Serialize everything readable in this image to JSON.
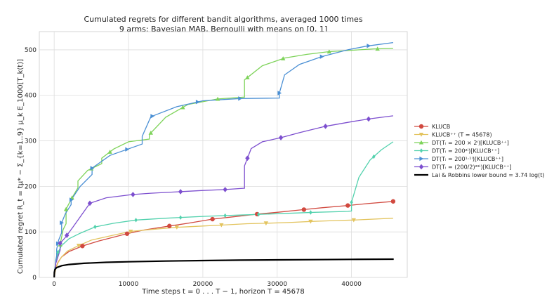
{
  "chart_data": {
    "type": "line",
    "title": "Cumulated regrets for different bandit algorithms, averaged 1000 times",
    "subtitle": "9 arms: Bayesian MAB, Bernoulli with means on [0, 1]",
    "xlabel": "Time steps t = 0 . . . T − 1, horizon T = 45678",
    "ylabel": "Cumulated regret R_t = tμ* − Σ_{k=1..9} μ_k E_1000[T_k(t)]",
    "xlim": [
      -2000,
      47500
    ],
    "ylim": [
      0,
      540
    ],
    "x_ticks": [
      0,
      10000,
      20000,
      30000,
      40000
    ],
    "x_tick_labels": [
      "0",
      "10000",
      "20000",
      "30000",
      "40000"
    ],
    "y_ticks": [
      0,
      100,
      200,
      300,
      400,
      500
    ],
    "y_tick_labels": [
      "0",
      "100",
      "200",
      "300",
      "400",
      "500"
    ],
    "grid": true,
    "legend_position": "right",
    "series": [
      {
        "name": "KLUCB",
        "color": "#d1493f",
        "marker": "circle",
        "x": [
          0,
          200,
          500,
          1000,
          2000,
          3800,
          6000,
          9800,
          12000,
          15500,
          18000,
          21300,
          24000,
          27300,
          30000,
          33600,
          36000,
          39500,
          42000,
          45600
        ],
        "y": [
          0,
          20,
          33,
          45,
          57,
          69,
          80,
          96,
          104,
          113,
          119,
          128,
          133,
          139,
          143,
          149,
          153,
          158,
          162,
          167
        ]
      },
      {
        "name": "KLUCB⁺⁺ (T = 45678)",
        "color": "#e3c45f",
        "marker": "triangle-down",
        "x": [
          0,
          200,
          500,
          1000,
          1800,
          3300,
          5000,
          8000,
          10300,
          13500,
          16500,
          20000,
          22500,
          26000,
          28500,
          32000,
          34500,
          38000,
          40300,
          45600
        ],
        "y": [
          0,
          18,
          32,
          45,
          58,
          70,
          82,
          93,
          101,
          106,
          110,
          113,
          115,
          118,
          119,
          121,
          123,
          125,
          126,
          130
        ]
      },
      {
        "name": "DT(T_i = 200 × 2^i)[KLUCB⁺⁺]",
        "color": "#7ed35a",
        "marker": "triangle-up",
        "x": [
          0,
          200,
          400,
          799,
          800,
          1200,
          1599,
          1600,
          2400,
          3199,
          3200,
          4500,
          6399,
          6400,
          8000,
          10000,
          12799,
          12800,
          15000,
          18000,
          22000,
          25599,
          25600,
          28000,
          31000,
          34000,
          37000,
          40000,
          43000,
          45600
        ],
        "y": [
          0,
          30,
          45,
          60,
          72,
          105,
          118,
          150,
          175,
          197,
          212,
          235,
          250,
          262,
          282,
          298,
          304,
          314,
          352,
          380,
          392,
          396,
          434,
          465,
          482,
          490,
          496,
          499,
          502,
          503
        ]
      },
      {
        "name": "DT(T_i = 200^(2^i))[KLUCB⁺⁺]",
        "color": "#52d1ad",
        "marker": "diamond-thin",
        "x": [
          0,
          100,
          199,
          200,
          500,
          1000,
          2000,
          3500,
          5500,
          8000,
          11000,
          15000,
          20000,
          25000,
          30000,
          35000,
          39500,
          39999,
          40000,
          41000,
          42500,
          44000,
          45600
        ],
        "y": [
          0,
          20,
          32,
          38,
          55,
          70,
          85,
          97,
          111,
          119,
          126,
          130,
          134,
          137,
          140,
          143,
          145,
          146,
          165,
          220,
          258,
          280,
          298
        ]
      },
      {
        "name": "DT(T_i = 200^(1.1^i))[KLUCB⁺⁺]",
        "color": "#4a8fd4",
        "marker": "triangle-right",
        "x": [
          0,
          200,
          337,
          338,
          600,
          999,
          1000,
          1500,
          2279,
          2280,
          3500,
          5095,
          5100,
          7500,
          11839,
          11840,
          13000,
          16500,
          20000,
          25000,
          30299,
          30300,
          31000,
          33000,
          36000,
          39500,
          42000,
          45600
        ],
        "y": [
          0,
          35,
          48,
          62,
          82,
          98,
          120,
          140,
          160,
          170,
          200,
          226,
          240,
          268,
          293,
          310,
          353,
          375,
          388,
          393,
          394,
          405,
          445,
          468,
          485,
          500,
          508,
          516
        ]
      },
      {
        "name": "DT(T_i = (200/2)2^(2^i))[KLUCB⁺⁺]",
        "color": "#7d4fcf",
        "marker": "diamond",
        "x": [
          0,
          200,
          799,
          800,
          1500,
          2500,
          4800,
          7000,
          10500,
          13000,
          16600,
          20000,
          23000,
          25599,
          25600,
          26500,
          28000,
          30500,
          33000,
          36500,
          40000,
          42300,
          45600
        ],
        "y": [
          0,
          30,
          60,
          75,
          88,
          110,
          163,
          175,
          182,
          185,
          188,
          191,
          193,
          196,
          245,
          283,
          298,
          307,
          318,
          332,
          342,
          348,
          355
        ]
      },
      {
        "name": "Lai & Robbins lower bound = 3.74 log(t)",
        "color": "#000000",
        "marker": "none",
        "x": [
          1,
          20,
          100,
          300,
          1000,
          2000,
          4000,
          7000,
          10000,
          15000,
          20000,
          25000,
          30000,
          35000,
          40000,
          45678
        ],
        "y": [
          0,
          11.2,
          17.2,
          21.3,
          25.8,
          28.4,
          31.0,
          33.1,
          34.4,
          36.0,
          37.0,
          37.9,
          38.6,
          39.1,
          39.6,
          40.1
        ]
      }
    ],
    "legend_labels": {
      "KLUCB": "KLUCB",
      "KLUCB_pp": "KLUCB⁺⁺ (T = 45678)",
      "DT_doubling": "DT(Tᵢ = 200 × 2ⁱ)[KLUCB⁺⁺]",
      "DT_square": "DT(Tᵢ = 200²ⁱ)[KLUCB⁺⁺]",
      "DT_geom": "DT(Tᵢ = 200¹·¹ⁱ)[KLUCB⁺⁺]",
      "DT_half": "DT(Tᵢ = (200/2)²²ⁱ)[KLUCB⁺⁺]",
      "LaiRobbins": "Lai & Robbins lower bound = 3.74 log(t)"
    },
    "marker_x_positions": [
      [
        3800,
        9800,
        15500,
        21300,
        27300,
        33600,
        39500,
        45600
      ],
      [
        3300,
        10300,
        16500,
        22500,
        28500,
        34500,
        40300
      ],
      [
        800,
        1600,
        2400,
        5000,
        7500,
        13000,
        17300,
        22000,
        26000,
        30800,
        37000,
        43500
      ],
      [
        500,
        5500,
        11000,
        17000,
        23000,
        27500,
        34500,
        40000,
        43000
      ],
      [
        500,
        1000,
        2300,
        5100,
        9800,
        13200,
        19300,
        25000,
        30300,
        36000,
        42300
      ],
      [
        800,
        1700,
        4800,
        10600,
        17000,
        23000,
        26000,
        30500,
        36500,
        42300
      ]
    ]
  }
}
